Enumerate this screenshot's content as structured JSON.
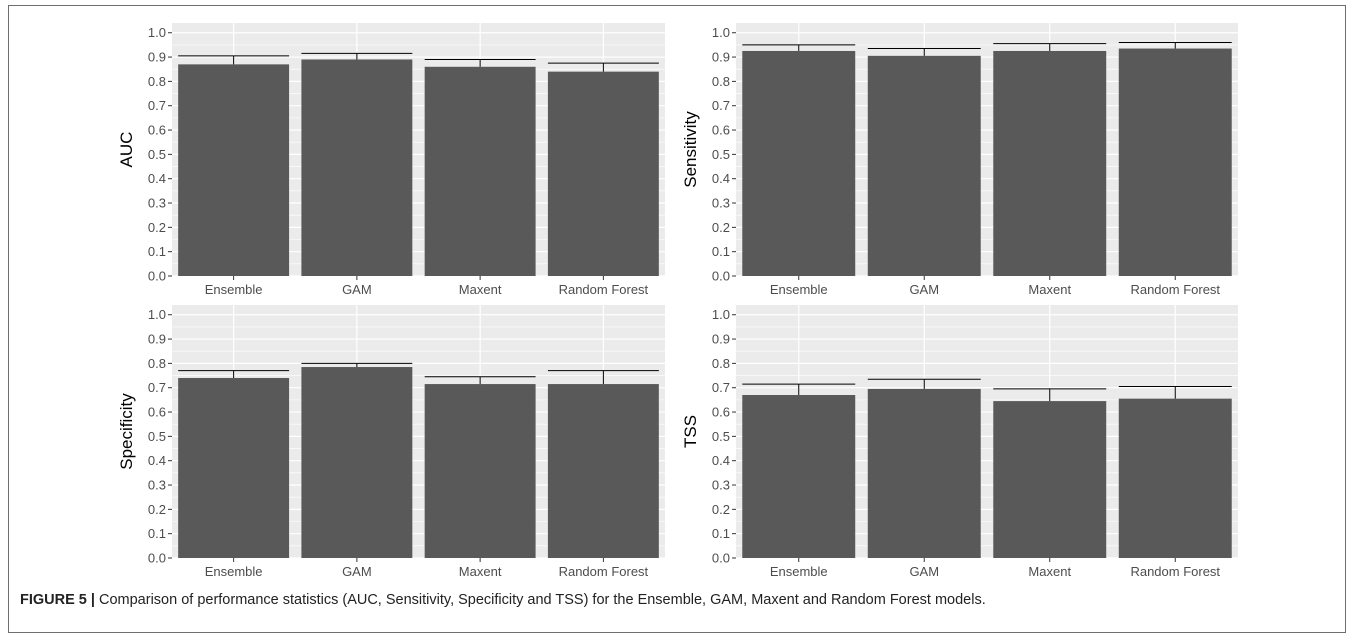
{
  "figure": {
    "caption_label": "FIGURE 5 |",
    "caption_text": " Comparison of performance statistics (AUC, Sensitivity, Specificity and TSS) for the Ensemble, GAM, Maxent and Random Forest models."
  },
  "colors": {
    "panel_background": "#ebebeb",
    "gridline": "#ffffff",
    "bar_fill": "#595959",
    "error_bar": "#000000",
    "tick_text": "#4d4d4d"
  },
  "chart_data": [
    {
      "type": "bar",
      "ylabel": "AUC",
      "categories": [
        "Ensemble",
        "GAM",
        "Maxent",
        "Random Forest"
      ],
      "values": [
        0.87,
        0.89,
        0.86,
        0.84
      ],
      "error_upper": [
        0.905,
        0.915,
        0.89,
        0.875
      ],
      "yticks": [
        "0.0",
        "0.1",
        "0.2",
        "0.3",
        "0.4",
        "0.5",
        "0.6",
        "0.7",
        "0.8",
        "0.9",
        "1.0"
      ],
      "ylim": [
        0,
        1.04
      ],
      "grid": true
    },
    {
      "type": "bar",
      "ylabel": "Sensitivity",
      "categories": [
        "Ensemble",
        "GAM",
        "Maxent",
        "Random Forest"
      ],
      "values": [
        0.925,
        0.905,
        0.925,
        0.935
      ],
      "error_upper": [
        0.95,
        0.935,
        0.955,
        0.96
      ],
      "yticks": [
        "0.0",
        "0.1",
        "0.2",
        "0.3",
        "0.4",
        "0.5",
        "0.6",
        "0.7",
        "0.8",
        "0.9",
        "1.0"
      ],
      "ylim": [
        0,
        1.04
      ],
      "grid": true
    },
    {
      "type": "bar",
      "ylabel": "Specificity",
      "categories": [
        "Ensemble",
        "GAM",
        "Maxent",
        "Random Forest"
      ],
      "values": [
        0.74,
        0.785,
        0.715,
        0.715
      ],
      "error_upper": [
        0.77,
        0.8,
        0.745,
        0.77
      ],
      "yticks": [
        "0.0",
        "0.1",
        "0.2",
        "0.3",
        "0.4",
        "0.5",
        "0.6",
        "0.7",
        "0.8",
        "0.9",
        "1.0"
      ],
      "ylim": [
        0,
        1.04
      ],
      "grid": true
    },
    {
      "type": "bar",
      "ylabel": "TSS",
      "categories": [
        "Ensemble",
        "GAM",
        "Maxent",
        "Random Forest"
      ],
      "values": [
        0.67,
        0.695,
        0.645,
        0.655
      ],
      "error_upper": [
        0.715,
        0.735,
        0.695,
        0.705
      ],
      "yticks": [
        "0.0",
        "0.1",
        "0.2",
        "0.3",
        "0.4",
        "0.5",
        "0.6",
        "0.7",
        "0.8",
        "0.9",
        "1.0"
      ],
      "ylim": [
        0,
        1.04
      ],
      "grid": true
    }
  ]
}
